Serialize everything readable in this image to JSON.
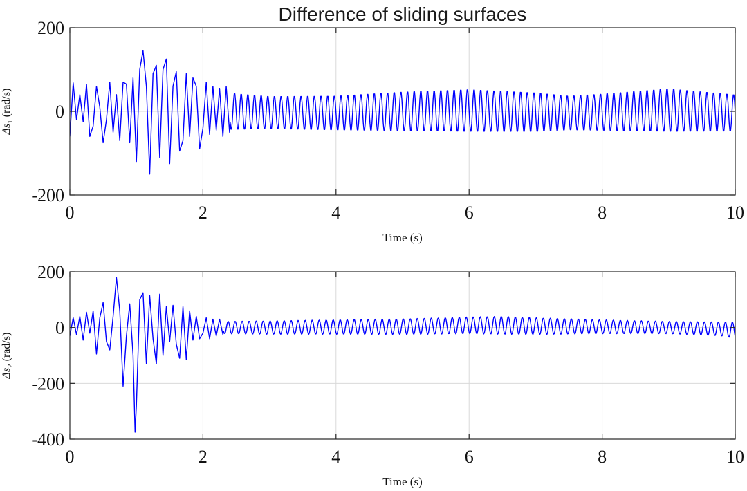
{
  "chart_data": [
    {
      "type": "line",
      "title": "Difference of sliding surfaces",
      "xlabel": "Time (s)",
      "ylabel": {
        "symbol": "Δs",
        "subscript": "1",
        "unit": "(rad/s)"
      },
      "xlim": [
        0,
        10
      ],
      "ylim": [
        -200,
        200
      ],
      "xticks": [
        0,
        2,
        4,
        6,
        8,
        10
      ],
      "xtick_labels": [
        "0",
        "2",
        "4",
        "6",
        "8",
        "10"
      ],
      "yticks": [
        -200,
        0,
        200
      ],
      "ytick_labels": [
        "-200",
        "0",
        "200"
      ],
      "grid": true,
      "series": [
        {
          "name": "Δs1",
          "color": "#0000ff",
          "envelope": [
            [
              0.0,
              -60
            ],
            [
              0.05,
              68
            ],
            [
              0.1,
              -20
            ],
            [
              0.15,
              40
            ],
            [
              0.2,
              -25
            ],
            [
              0.25,
              65
            ],
            [
              0.3,
              -60
            ],
            [
              0.35,
              -35
            ],
            [
              0.4,
              60
            ],
            [
              0.45,
              10
            ],
            [
              0.5,
              -75
            ],
            [
              0.55,
              -20
            ],
            [
              0.6,
              70
            ],
            [
              0.65,
              -50
            ],
            [
              0.7,
              40
            ],
            [
              0.75,
              -70
            ],
            [
              0.8,
              70
            ],
            [
              0.85,
              65
            ],
            [
              0.9,
              -75
            ],
            [
              0.95,
              80
            ],
            [
              1.0,
              -120
            ],
            [
              1.05,
              100
            ],
            [
              1.1,
              145
            ],
            [
              1.15,
              60
            ],
            [
              1.2,
              -150
            ],
            [
              1.25,
              90
            ],
            [
              1.3,
              110
            ],
            [
              1.35,
              -110
            ],
            [
              1.4,
              100
            ],
            [
              1.45,
              125
            ],
            [
              1.5,
              -125
            ],
            [
              1.55,
              60
            ],
            [
              1.6,
              95
            ],
            [
              1.65,
              -95
            ],
            [
              1.7,
              -70
            ],
            [
              1.75,
              90
            ],
            [
              1.8,
              -60
            ],
            [
              1.85,
              80
            ],
            [
              1.9,
              60
            ],
            [
              1.95,
              -90
            ],
            [
              2.0,
              -40
            ],
            [
              2.05,
              70
            ],
            [
              2.1,
              -55
            ],
            [
              2.15,
              60
            ],
            [
              2.2,
              -45
            ],
            [
              2.25,
              55
            ],
            [
              2.3,
              -60
            ],
            [
              2.35,
              60
            ],
            [
              2.4,
              -50
            ]
          ],
          "oscillation": {
            "from": 2.4,
            "to": 10.0,
            "frequency_hz": 10,
            "amplitude": [
              [
                2.4,
                45
              ],
              [
                3.0,
                40
              ],
              [
                4.0,
                42
              ],
              [
                5.0,
                48
              ],
              [
                6.0,
                52
              ],
              [
                7.0,
                48
              ],
              [
                7.5,
                42
              ],
              [
                8.0,
                45
              ],
              [
                9.0,
                53
              ],
              [
                10.0,
                45
              ]
            ],
            "offset": [
              [
                2.4,
                0
              ],
              [
                3.0,
                -3
              ],
              [
                4.0,
                -4
              ],
              [
                5.0,
                0
              ],
              [
                6.0,
                2
              ],
              [
                7.0,
                -2
              ],
              [
                7.5,
                -4
              ],
              [
                8.0,
                -2
              ],
              [
                9.0,
                3
              ],
              [
                10.0,
                -4
              ]
            ]
          }
        }
      ]
    },
    {
      "type": "line",
      "title": "",
      "xlabel": "Time (s)",
      "ylabel": {
        "symbol": "Δs",
        "subscript": "2",
        "unit": "(rad/s)"
      },
      "xlim": [
        0,
        10
      ],
      "ylim": [
        -400,
        200
      ],
      "xticks": [
        0,
        2,
        4,
        6,
        8,
        10
      ],
      "xtick_labels": [
        "0",
        "2",
        "4",
        "6",
        "8",
        "10"
      ],
      "yticks": [
        -400,
        -200,
        0,
        200
      ],
      "ytick_labels": [
        "-400",
        "-200",
        "0",
        "200"
      ],
      "grid": true,
      "series": [
        {
          "name": "Δs2",
          "color": "#0000ff",
          "envelope": [
            [
              0.0,
              -30
            ],
            [
              0.05,
              35
            ],
            [
              0.1,
              -25
            ],
            [
              0.15,
              40
            ],
            [
              0.2,
              -45
            ],
            [
              0.25,
              55
            ],
            [
              0.3,
              -20
            ],
            [
              0.35,
              60
            ],
            [
              0.4,
              -95
            ],
            [
              0.45,
              35
            ],
            [
              0.5,
              90
            ],
            [
              0.55,
              -50
            ],
            [
              0.6,
              -80
            ],
            [
              0.65,
              40
            ],
            [
              0.7,
              180
            ],
            [
              0.75,
              60
            ],
            [
              0.8,
              -210
            ],
            [
              0.85,
              -30
            ],
            [
              0.9,
              85
            ],
            [
              0.95,
              -100
            ],
            [
              0.98,
              -375
            ],
            [
              1.0,
              -280
            ],
            [
              1.05,
              100
            ],
            [
              1.1,
              125
            ],
            [
              1.15,
              -130
            ],
            [
              1.2,
              115
            ],
            [
              1.25,
              -40
            ],
            [
              1.3,
              -130
            ],
            [
              1.35,
              120
            ],
            [
              1.4,
              -100
            ],
            [
              1.45,
              75
            ],
            [
              1.5,
              -50
            ],
            [
              1.55,
              80
            ],
            [
              1.6,
              -60
            ],
            [
              1.65,
              -110
            ],
            [
              1.7,
              75
            ],
            [
              1.75,
              -115
            ],
            [
              1.8,
              60
            ],
            [
              1.85,
              -45
            ],
            [
              1.9,
              40
            ],
            [
              1.95,
              -40
            ],
            [
              2.0,
              -20
            ],
            [
              2.05,
              35
            ],
            [
              2.1,
              -40
            ],
            [
              2.15,
              30
            ],
            [
              2.2,
              -30
            ],
            [
              2.25,
              30
            ],
            [
              2.3,
              -25
            ]
          ],
          "oscillation": {
            "from": 2.3,
            "to": 10.0,
            "frequency_hz": 9.5,
            "amplitude": [
              [
                2.3,
                22
              ],
              [
                3.0,
                24
              ],
              [
                4.0,
                26
              ],
              [
                5.0,
                28
              ],
              [
                6.0,
                30
              ],
              [
                6.5,
                32
              ],
              [
                7.0,
                30
              ],
              [
                8.0,
                25
              ],
              [
                9.0,
                22
              ],
              [
                9.8,
                25
              ],
              [
                10.0,
                30
              ]
            ],
            "offset": [
              [
                2.3,
                0
              ],
              [
                3.0,
                0
              ],
              [
                4.0,
                2
              ],
              [
                5.0,
                3
              ],
              [
                6.0,
                8
              ],
              [
                6.5,
                8
              ],
              [
                7.0,
                5
              ],
              [
                8.0,
                3
              ],
              [
                9.0,
                0
              ],
              [
                9.8,
                -5
              ],
              [
                10.0,
                -10
              ]
            ]
          }
        }
      ]
    }
  ]
}
